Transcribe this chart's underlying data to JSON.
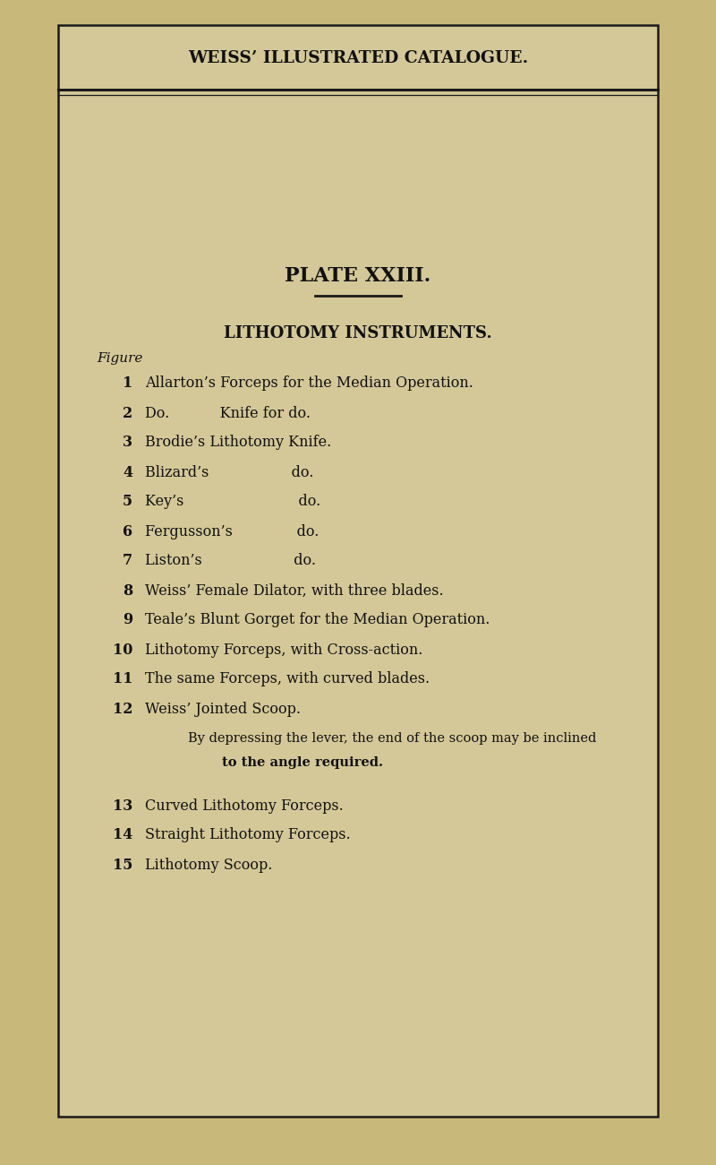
{
  "page_bg": "#c8b87a",
  "inner_bg": "#d4c898",
  "border_color": "#1a1a1a",
  "text_color": "#111111",
  "header": "WEISS’ ILLUSTRATED CATALOGUE.",
  "plate_title": "PLATE XXIII.",
  "section_title": "LITHOTOMY INSTRUMENTS.",
  "figure_label": "Figure",
  "note_line1": "By depressing the lever, the end of the scoop may be inclined",
  "note_line2": "to the angle required.",
  "entries": [
    {
      "num": "1",
      "text": "Allarton’s Forceps for the Median Operation."
    },
    {
      "num": "2",
      "text": "Do.           Knife for do."
    },
    {
      "num": "3",
      "text": "Brodie’s Lithotomy Knife."
    },
    {
      "num": "4",
      "text": "Blizard’s                  do."
    },
    {
      "num": "5",
      "text": "Key’s                         do."
    },
    {
      "num": "6",
      "text": "Fergusson’s              do."
    },
    {
      "num": "7",
      "text": "Liston’s                    do."
    },
    {
      "num": "8",
      "text": "Weiss’ Female Dilator, with three blades."
    },
    {
      "num": "9",
      "text": "Teale’s Blunt Gorget for the Median Operation."
    },
    {
      "num": "10",
      "text": "Lithotomy Forceps, with Cross-action."
    },
    {
      "num": "11",
      "text": "The same Forceps, with curved blades."
    },
    {
      "num": "12",
      "text": "Weiss’ Jointed Scoop."
    },
    {
      "num": "13",
      "text": "Curved Lithotomy Forceps."
    },
    {
      "num": "14",
      "text": "Straight Lithotomy Forceps."
    },
    {
      "num": "15",
      "text": "Lithotomy Scoop."
    }
  ]
}
